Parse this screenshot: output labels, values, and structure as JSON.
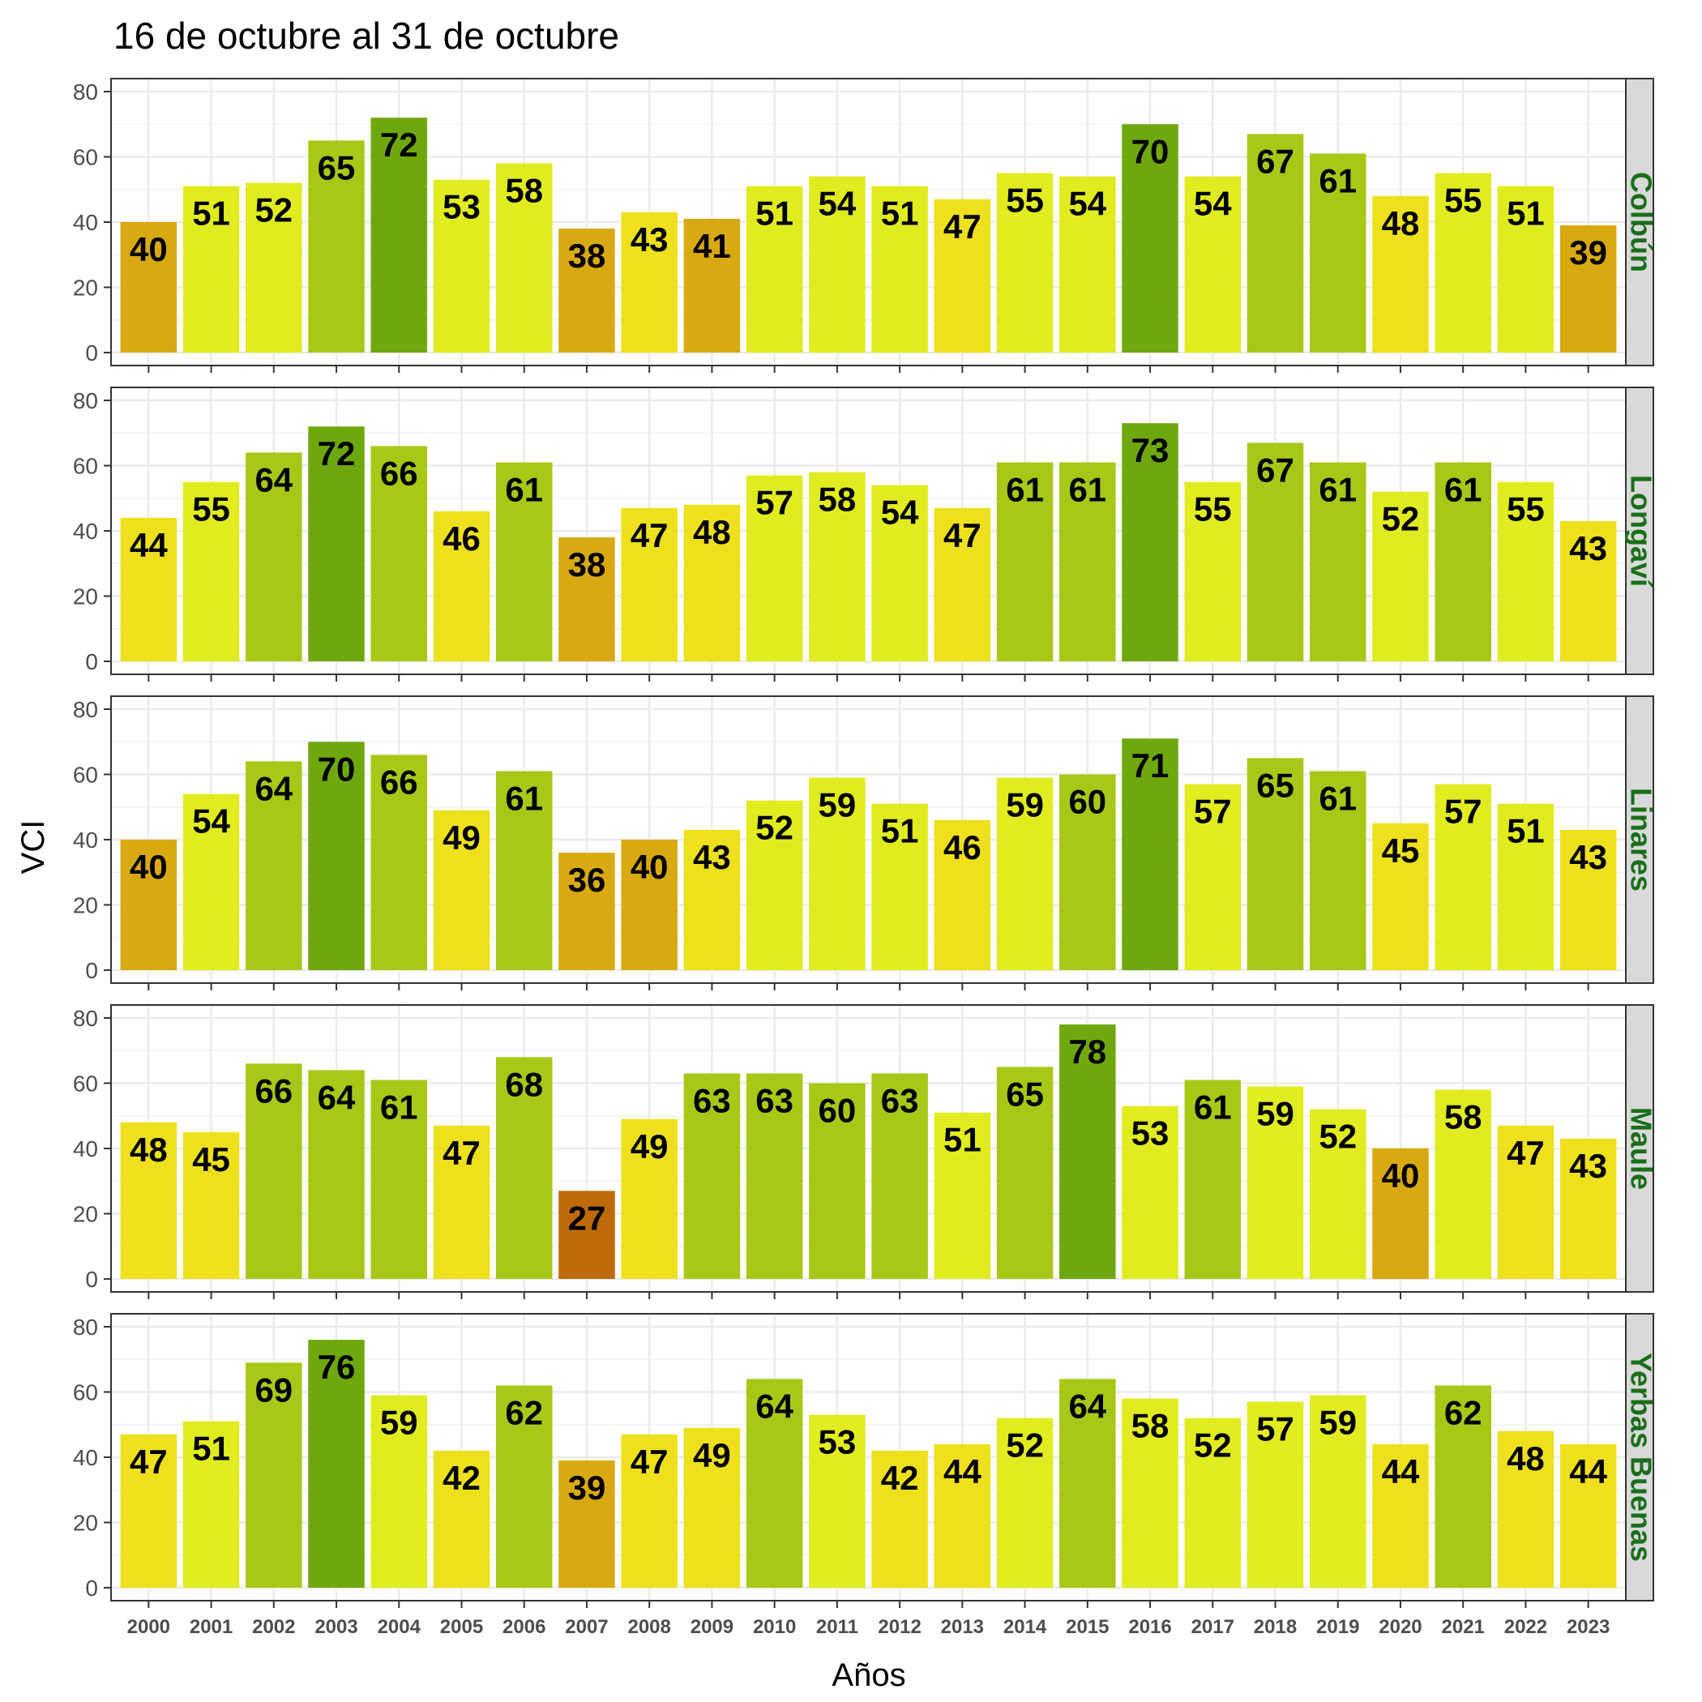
{
  "chart_data": {
    "type": "bar",
    "title": "16 de octubre al 31 de octubre",
    "xlabel": "Años",
    "ylabel": "VCI",
    "ylim": [
      0,
      80
    ],
    "yticks": [
      0,
      20,
      40,
      60,
      80
    ],
    "grid": true,
    "facet_label_color": "#1a6e1a",
    "categories": [
      "2000",
      "2001",
      "2002",
      "2003",
      "2004",
      "2005",
      "2006",
      "2007",
      "2008",
      "2009",
      "2010",
      "2011",
      "2012",
      "2013",
      "2014",
      "2015",
      "2016",
      "2017",
      "2018",
      "2019",
      "2020",
      "2021",
      "2022",
      "2023"
    ],
    "series": [
      {
        "name": "Colbún",
        "values": [
          40,
          51,
          52,
          65,
          72,
          53,
          58,
          38,
          43,
          41,
          51,
          54,
          51,
          47,
          55,
          54,
          70,
          54,
          67,
          61,
          48,
          55,
          51,
          39
        ]
      },
      {
        "name": "Longaví",
        "values": [
          44,
          55,
          64,
          72,
          66,
          46,
          61,
          38,
          47,
          48,
          57,
          58,
          54,
          47,
          61,
          61,
          73,
          55,
          67,
          61,
          52,
          61,
          55,
          43
        ]
      },
      {
        "name": "Linares",
        "values": [
          40,
          54,
          64,
          70,
          66,
          49,
          61,
          36,
          40,
          43,
          52,
          59,
          51,
          46,
          59,
          60,
          71,
          57,
          65,
          61,
          45,
          57,
          51,
          43
        ]
      },
      {
        "name": "Maule",
        "values": [
          48,
          45,
          66,
          64,
          61,
          47,
          68,
          27,
          49,
          63,
          63,
          60,
          63,
          51,
          65,
          78,
          53,
          61,
          59,
          52,
          40,
          58,
          47,
          43
        ]
      },
      {
        "name": "Yerbas Buenas",
        "values": [
          47,
          51,
          69,
          76,
          59,
          42,
          62,
          39,
          47,
          49,
          64,
          53,
          42,
          44,
          52,
          64,
          58,
          52,
          57,
          59,
          44,
          62,
          48,
          44
        ]
      }
    ]
  }
}
